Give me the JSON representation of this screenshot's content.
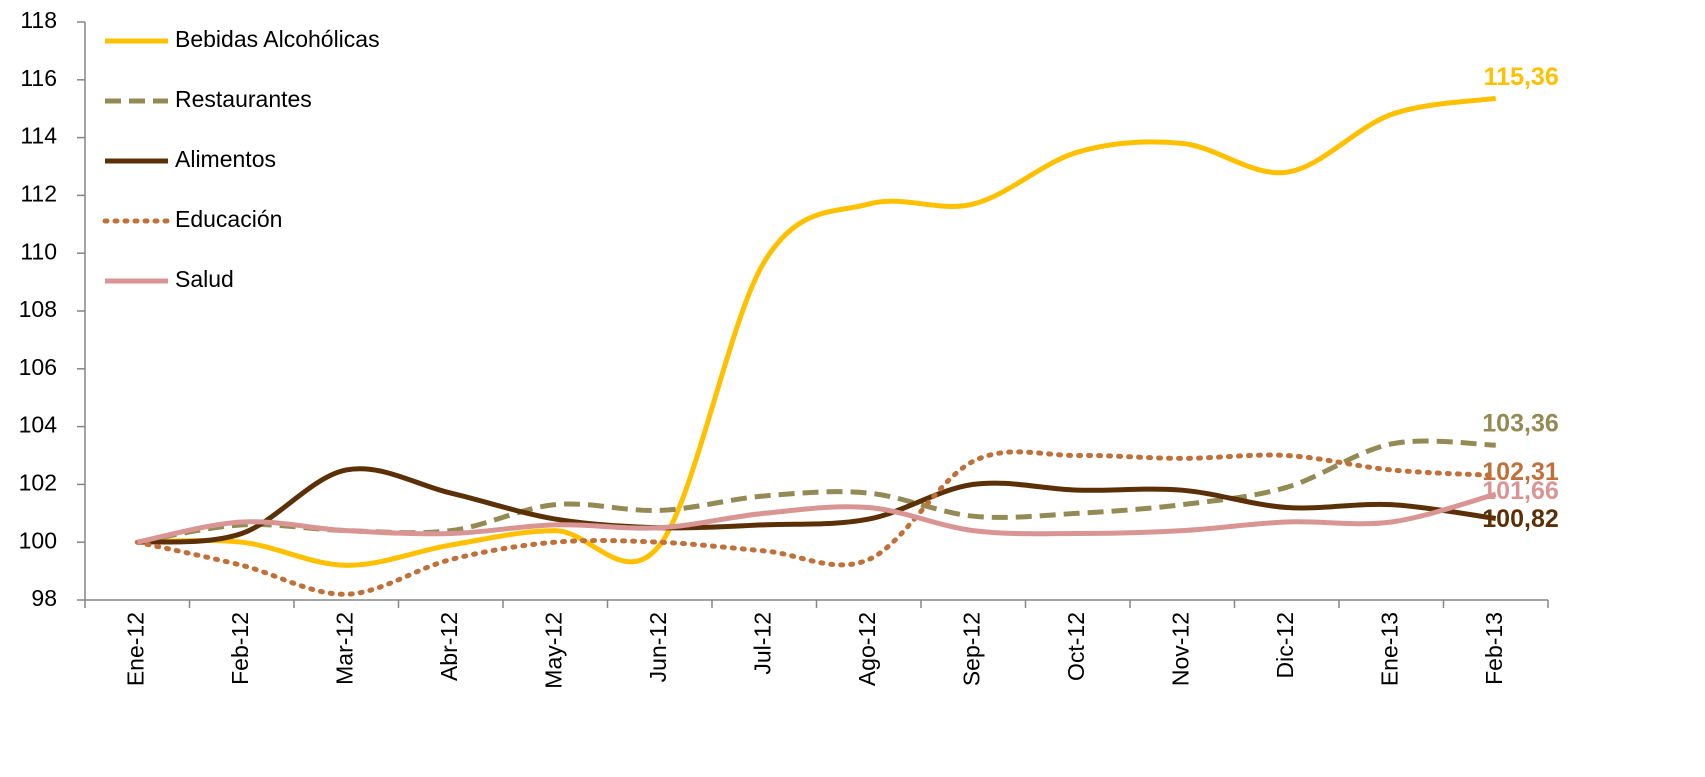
{
  "chart_data": {
    "type": "line",
    "categories": [
      "Ene-12",
      "Feb-12",
      "Mar-12",
      "Abr-12",
      "May-12",
      "Jun-12",
      "Jul-12",
      "Ago-12",
      "Sep-12",
      "Oct-12",
      "Nov-12",
      "Dic-12",
      "Ene-13",
      "Feb-13"
    ],
    "ylim": [
      98,
      118
    ],
    "yticks": [
      98,
      100,
      102,
      104,
      106,
      108,
      110,
      112,
      114,
      116,
      118
    ],
    "grid": false,
    "legend": "top-left",
    "smooth": true,
    "series": [
      {
        "name": "Bebidas Alcohólicas",
        "color": "#FFC000",
        "style": "solid",
        "values": [
          100,
          100,
          99.2,
          99.9,
          100.4,
          99.9,
          109.7,
          111.7,
          111.7,
          113.5,
          113.8,
          112.8,
          114.8,
          115.36
        ],
        "value_labels": [
          null,
          null,
          null,
          null,
          null,
          null,
          null,
          null,
          null,
          null,
          null,
          null,
          null,
          "115,36"
        ]
      },
      {
        "name": "Restaurantes",
        "color": "#948A54",
        "style": "dashed",
        "values": [
          100,
          100.6,
          100.4,
          100.4,
          101.3,
          101.1,
          101.6,
          101.7,
          100.9,
          101.0,
          101.3,
          101.9,
          103.4,
          103.36
        ],
        "value_labels": [
          null,
          null,
          null,
          null,
          null,
          null,
          null,
          null,
          null,
          null,
          null,
          null,
          null,
          "103,36"
        ]
      },
      {
        "name": "Alimentos",
        "color": "#5C3006",
        "style": "solid",
        "values": [
          100,
          100.3,
          102.5,
          101.7,
          100.8,
          100.5,
          100.6,
          100.8,
          102.0,
          101.8,
          101.8,
          101.2,
          101.3,
          100.82
        ],
        "value_labels": [
          null,
          null,
          null,
          null,
          null,
          null,
          null,
          null,
          null,
          null,
          null,
          null,
          null,
          "100,82"
        ]
      },
      {
        "name": "Educación",
        "color": "#C0713A",
        "style": "dotted",
        "values": [
          100,
          99.2,
          98.2,
          99.4,
          100.0,
          100.0,
          99.7,
          99.4,
          102.8,
          103.0,
          102.9,
          103.0,
          102.5,
          102.31
        ],
        "value_labels": [
          null,
          null,
          null,
          null,
          null,
          null,
          null,
          null,
          null,
          null,
          null,
          null,
          null,
          "102,31"
        ]
      },
      {
        "name": "Salud",
        "color": "#D99594",
        "style": "solid",
        "values": [
          100,
          100.7,
          100.4,
          100.3,
          100.6,
          100.5,
          101.0,
          101.2,
          100.4,
          100.3,
          100.4,
          100.7,
          100.7,
          101.66
        ],
        "value_labels": [
          null,
          null,
          null,
          null,
          null,
          null,
          null,
          null,
          null,
          null,
          null,
          null,
          null,
          "101,66"
        ]
      }
    ]
  }
}
